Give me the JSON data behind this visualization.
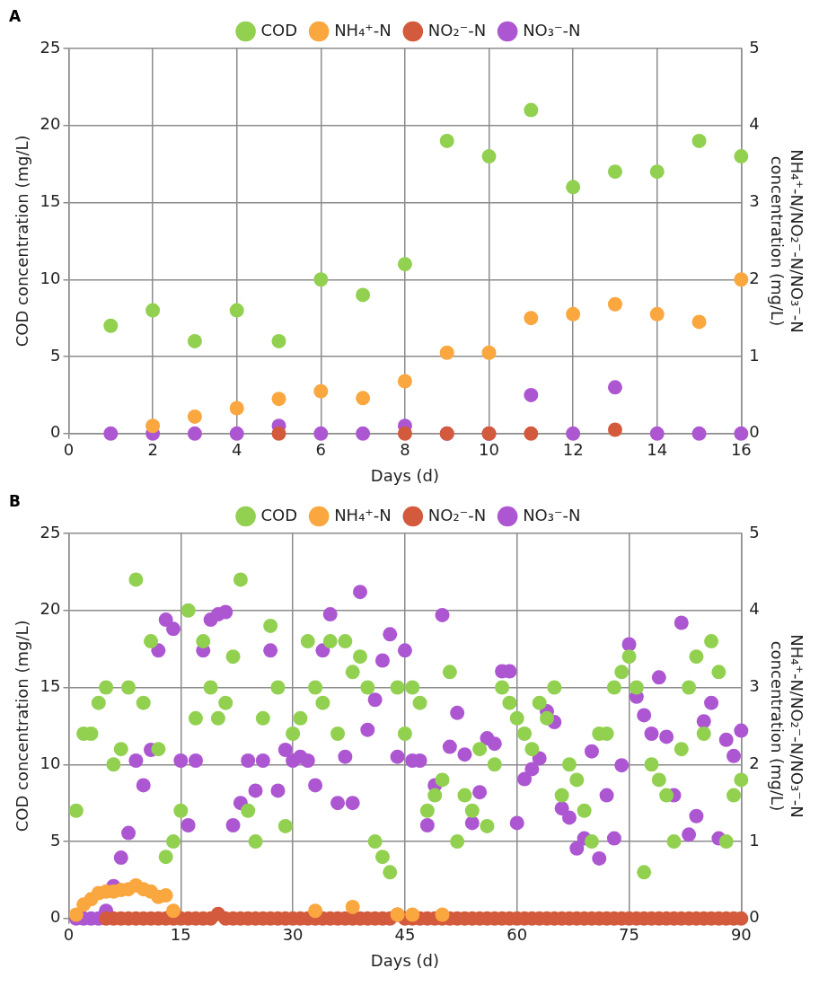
{
  "chart_data": [
    {
      "type": "scatter",
      "title": "A",
      "xlabel": "Days (d)",
      "ylabel": "COD concentration (mg/L)",
      "y2label": "NH₄⁺-N/NO₂⁻-N/NO₃⁻-N concentration (mg/L)",
      "x": [
        1,
        2,
        3,
        4,
        5,
        6,
        7,
        8,
        9,
        10,
        11,
        12,
        13,
        14,
        15,
        16
      ],
      "xlim": [
        0,
        16
      ],
      "xticks": [
        0,
        2,
        4,
        6,
        8,
        10,
        12,
        14,
        16
      ],
      "ylim": [
        0,
        25
      ],
      "yticks": [
        0,
        5,
        10,
        15,
        20,
        25
      ],
      "y2lim": [
        0,
        5
      ],
      "y2ticks": [
        0,
        1,
        2,
        3,
        4,
        5
      ],
      "grid": true,
      "legend": "top",
      "marker": "circle",
      "series": [
        {
          "name": "COD",
          "color": "#92d050",
          "values": [
            7,
            8,
            6,
            8,
            6,
            10,
            9,
            11,
            19,
            18,
            21,
            16,
            17,
            17,
            19,
            18
          ]
        },
        {
          "name": "NH₄⁺-N",
          "color": "#f9a73e",
          "axis": "y2",
          "values": [
            null,
            0.1,
            0.22,
            0.33,
            0.45,
            0.55,
            0.46,
            0.68,
            1.05,
            1.05,
            1.5,
            1.55,
            1.68,
            1.55,
            1.45,
            2.0
          ]
        },
        {
          "name": "NO₂⁻-N",
          "color": "#d35a3c",
          "axis": "y2",
          "values": [
            null,
            null,
            null,
            null,
            0,
            null,
            null,
            0,
            0,
            0,
            0,
            null,
            0.05,
            null,
            null,
            null
          ]
        },
        {
          "name": "NO₃⁻-N",
          "color": "#ad56d2",
          "axis": "y2",
          "values": [
            0,
            0,
            0,
            0,
            0.1,
            0,
            0,
            0.1,
            0,
            0,
            0.5,
            0,
            0.6,
            0,
            0,
            0
          ]
        }
      ]
    },
    {
      "type": "scatter",
      "title": "B",
      "xlabel": "Days (d)",
      "ylabel": "COD concentration (mg/L)",
      "y2label": "NH₄⁺-N/NO₂⁻-N/NO₃⁻-N concentration (mg/L)",
      "x": [
        1,
        2,
        3,
        4,
        5,
        6,
        7,
        8,
        9,
        10,
        11,
        12,
        13,
        14,
        15,
        16,
        17,
        18,
        19,
        20,
        21,
        22,
        23,
        24,
        25,
        26,
        27,
        28,
        29,
        30,
        31,
        32,
        33,
        34,
        35,
        36,
        37,
        38,
        39,
        40,
        41,
        42,
        43,
        44,
        45,
        46,
        47,
        48,
        49,
        50,
        51,
        52,
        53,
        54,
        55,
        56,
        57,
        58,
        59,
        60,
        61,
        62,
        63,
        64,
        65,
        66,
        67,
        68,
        69,
        70,
        71,
        72,
        73,
        74,
        75,
        76,
        77,
        78,
        79,
        80,
        81,
        82,
        83,
        84,
        85,
        86,
        87,
        88,
        89,
        90
      ],
      "xlim": [
        0,
        90
      ],
      "xticks": [
        0,
        15,
        30,
        45,
        60,
        75,
        90
      ],
      "ylim": [
        0,
        25
      ],
      "yticks": [
        0,
        5,
        10,
        15,
        20,
        25
      ],
      "y2lim": [
        0,
        5
      ],
      "y2ticks": [
        0,
        1,
        2,
        3,
        4,
        5
      ],
      "grid": true,
      "legend": "top",
      "marker": "circle",
      "series": [
        {
          "name": "COD",
          "color": "#92d050",
          "values": [
            7,
            12,
            12,
            14,
            15,
            10,
            11,
            15,
            22,
            14,
            18,
            11,
            4,
            5,
            7,
            20,
            13,
            18,
            15,
            13,
            14,
            17,
            22,
            7,
            5,
            13,
            19,
            15,
            6,
            12,
            13,
            18,
            15,
            14,
            18,
            12,
            18,
            16,
            17,
            15,
            5,
            4,
            3,
            15,
            12,
            15,
            14,
            7,
            8,
            9,
            16,
            5,
            8,
            7,
            11,
            6,
            10,
            15,
            14,
            13,
            12,
            11,
            14,
            13,
            15,
            8,
            10,
            9,
            7,
            5,
            12,
            12,
            15,
            16,
            17,
            15,
            3,
            10,
            9,
            8,
            5,
            11,
            15,
            17,
            12,
            18,
            16,
            5,
            8,
            9
          ]
        },
        {
          "name": "NH₄⁺-N",
          "color": "#f9a73e",
          "axis": "y2",
          "values": [
            0.05,
            0.18,
            0.25,
            0.33,
            0.35,
            0.35,
            0.37,
            0.38,
            0.43,
            0.38,
            0.35,
            0.28,
            0.3,
            0.1,
            null,
            null,
            null,
            null,
            null,
            null,
            null,
            null,
            null,
            null,
            null,
            null,
            null,
            null,
            null,
            null,
            null,
            null,
            0.1,
            null,
            null,
            null,
            null,
            0.15,
            null,
            null,
            null,
            null,
            null,
            0.05,
            null,
            0.05,
            null,
            null,
            null,
            0.05,
            null,
            null,
            null,
            null,
            null,
            null,
            null,
            null,
            null,
            null,
            null,
            null,
            null,
            null,
            null,
            null,
            null,
            null,
            null,
            null,
            null,
            null,
            null,
            null,
            null,
            null,
            null,
            null,
            null,
            null,
            null,
            null,
            null,
            null,
            null,
            null,
            null,
            null,
            null,
            null
          ]
        },
        {
          "name": "NO₂⁻-N",
          "color": "#d35a3c",
          "axis": "y2",
          "values": [
            null,
            null,
            null,
            null,
            0,
            0,
            0,
            0,
            0,
            0,
            0,
            0,
            0,
            0,
            0,
            0,
            0,
            0,
            0,
            0.06,
            0,
            0,
            0,
            0,
            0,
            0,
            0,
            0,
            0,
            0,
            0,
            0,
            0,
            0,
            0,
            0,
            0,
            0,
            0,
            0,
            0,
            0,
            0,
            0.05,
            0,
            0,
            0,
            0,
            0,
            0,
            0,
            0,
            0,
            0,
            0,
            0,
            0,
            0,
            0,
            0,
            0,
            0,
            0,
            0,
            0,
            0,
            0,
            0,
            0,
            0,
            0,
            0,
            0,
            0,
            0,
            0,
            0,
            0,
            0,
            0,
            0,
            0,
            0,
            0,
            0,
            0,
            0,
            0,
            0,
            0
          ]
        },
        {
          "name": "NO₃⁻-N",
          "color": "#ad56d2",
          "axis": "y2",
          "values": [
            0,
            0,
            0,
            0,
            0.1,
            0.42,
            0.79,
            1.11,
            2.05,
            1.73,
            2.19,
            3.48,
            3.88,
            3.76,
            2.05,
            1.21,
            2.05,
            3.48,
            3.88,
            3.95,
            3.98,
            1.21,
            1.5,
            2.05,
            1.66,
            2.05,
            3.48,
            1.66,
            2.19,
            2.05,
            2.1,
            2.05,
            1.73,
            3.48,
            3.95,
            1.5,
            2.1,
            1.5,
            4.24,
            2.45,
            2.84,
            3.35,
            3.69,
            2.1,
            3.48,
            2.05,
            2.05,
            1.21,
            1.73,
            3.94,
            2.23,
            2.67,
            2.13,
            1.24,
            1.64,
            2.34,
            2.27,
            3.21,
            3.21,
            1.24,
            1.81,
            1.94,
            2.08,
            2.69,
            2.55,
            1.43,
            1.31,
            0.91,
            1.04,
            2.17,
            0.78,
            1.6,
            1.04,
            1.99,
            3.56,
            2.88,
            2.64,
            2.4,
            3.13,
            2.36,
            1.6,
            3.84,
            1.09,
            1.33,
            2.56,
            2.8,
            1.04,
            2.32,
            2.11,
            2.44
          ]
        }
      ]
    }
  ]
}
